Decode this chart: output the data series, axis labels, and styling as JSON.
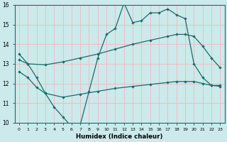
{
  "xlabel": "Humidex (Indice chaleur)",
  "xlim": [
    -0.5,
    23.5
  ],
  "ylim": [
    10,
    16
  ],
  "yticks": [
    10,
    11,
    12,
    13,
    14,
    15,
    16
  ],
  "xticks": [
    0,
    1,
    2,
    3,
    4,
    5,
    6,
    7,
    8,
    9,
    10,
    11,
    12,
    13,
    14,
    15,
    16,
    17,
    18,
    19,
    20,
    21,
    22,
    23
  ],
  "bg_color": "#cce9ec",
  "line_color": "#1c6b6b",
  "grid_color": "#f0b8b8",
  "line1_x": [
    0,
    1,
    2,
    3,
    4,
    5,
    6,
    7,
    8,
    9,
    10,
    11,
    12,
    13,
    14,
    15,
    16,
    17,
    18,
    19,
    20,
    21,
    22,
    23
  ],
  "line1_y": [
    13.5,
    13.0,
    12.3,
    11.5,
    10.8,
    10.3,
    9.8,
    9.9,
    11.6,
    13.3,
    14.5,
    14.8,
    16.1,
    15.1,
    15.2,
    15.6,
    15.6,
    15.8,
    15.5,
    15.3,
    13.0,
    12.3,
    11.9,
    11.9
  ],
  "line2_x": [
    0,
    1,
    3,
    5,
    7,
    9,
    11,
    13,
    15,
    17,
    18,
    19,
    20,
    21,
    22,
    23
  ],
  "line2_y": [
    13.2,
    13.0,
    12.95,
    13.1,
    13.3,
    13.5,
    13.75,
    14.0,
    14.2,
    14.4,
    14.5,
    14.5,
    14.4,
    13.9,
    13.3,
    12.8
  ],
  "line3_x": [
    0,
    1,
    2,
    3,
    5,
    7,
    9,
    11,
    13,
    15,
    17,
    18,
    19,
    20,
    21,
    22,
    23
  ],
  "line3_y": [
    12.6,
    12.3,
    11.8,
    11.5,
    11.3,
    11.45,
    11.6,
    11.75,
    11.85,
    11.95,
    12.05,
    12.1,
    12.1,
    12.1,
    12.0,
    11.9,
    11.85
  ]
}
